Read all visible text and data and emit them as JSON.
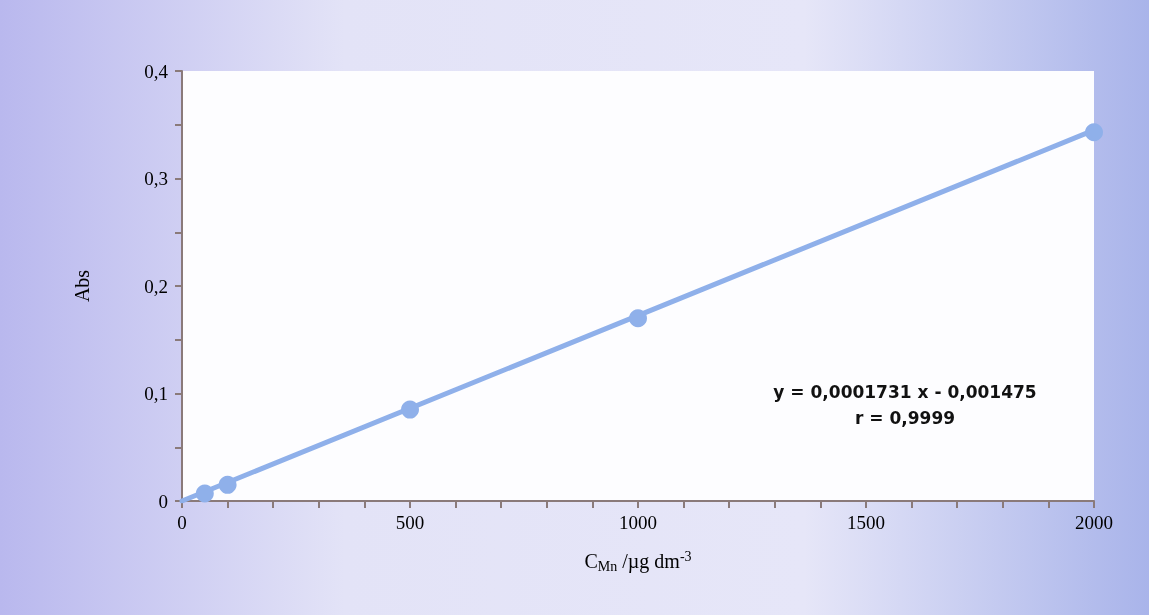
{
  "chart_data": {
    "type": "scatter",
    "xlabel": "C$_{Mn}$ /µg dm$^{-3}$",
    "ylabel": "Abs",
    "series": [
      {
        "color": "#8fb0ea",
        "x": [
          50,
          100,
          500,
          1000,
          2000
        ],
        "values": [
          0.007,
          0.015,
          0.085,
          0.17,
          0.343
        ],
        "marker": "circle"
      },
      {
        "type": "line",
        "color": "#8fb0ea",
        "x": [
          0,
          2000
        ],
        "values": [
          0,
          0.345
        ],
        "marker": "none"
      }
    ],
    "xlim": [
      0,
      2000
    ],
    "xticks": [
      0,
      {
        "value": 100,
        "label": null
      },
      {
        "value": 200,
        "label": null
      },
      {
        "value": 300,
        "label": null
      },
      {
        "value": 400,
        "label": null
      },
      500,
      {
        "value": 600,
        "label": null
      },
      {
        "value": 700,
        "label": null
      },
      {
        "value": 800,
        "label": null
      },
      {
        "value": 900,
        "label": null
      },
      1000,
      {
        "value": 1100,
        "label": null
      },
      {
        "value": 1200,
        "label": null
      },
      {
        "value": 1300,
        "label": null
      },
      {
        "value": 1400,
        "label": null
      },
      1500,
      {
        "value": 1600,
        "label": null
      },
      {
        "value": 1700,
        "label": null
      },
      {
        "value": 1800,
        "label": null
      },
      {
        "value": 1900,
        "label": null
      },
      2000
    ],
    "ylim": [
      0,
      0.4
    ],
    "yticks": [
      {
        "value": 0,
        "label": "0"
      },
      {
        "value": 0.05,
        "label": null
      },
      {
        "value": 0.1,
        "label": "0,1"
      },
      {
        "value": 0.15,
        "label": null
      },
      {
        "value": 0.2,
        "label": "0,2"
      },
      {
        "value": 0.25,
        "label": null
      },
      {
        "value": 0.3,
        "label": "0,3"
      },
      {
        "value": 0.35,
        "label": null
      },
      {
        "value": 0.4,
        "label": "0,4"
      }
    ],
    "annotations": [
      "y = 0,0001731 x - 0,001475",
      "r = 0,9999"
    ],
    "grid": false
  }
}
